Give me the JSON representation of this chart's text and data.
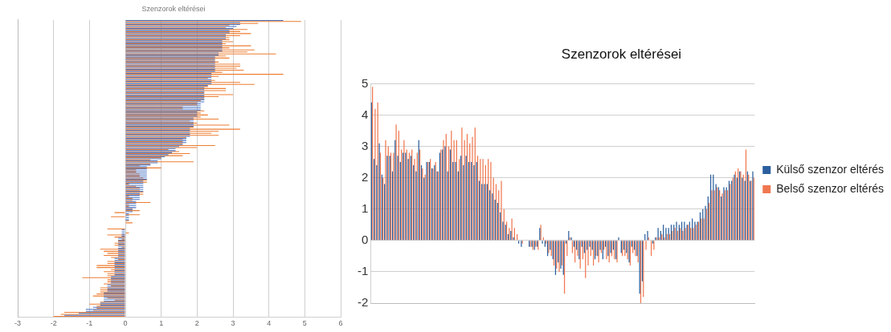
{
  "chart_data": [
    {
      "type": "bar",
      "title": "Szenzorok eltérései",
      "orientation": "horizontal",
      "categories": [
        null,
        null,
        null,
        null,
        null,
        null,
        null,
        null,
        null,
        null,
        null,
        null,
        null,
        null,
        null,
        null,
        null,
        null,
        null,
        null,
        null,
        null,
        null,
        null,
        null,
        null,
        null,
        null,
        null,
        null,
        null,
        null,
        null,
        null,
        null,
        null,
        null,
        null,
        null,
        null,
        null,
        null,
        null,
        null,
        null,
        null,
        null,
        null,
        null,
        null,
        null,
        null,
        null,
        null,
        null,
        null,
        null,
        null,
        null,
        null,
        null,
        null,
        null,
        null,
        null,
        null,
        null,
        null,
        null,
        null,
        null,
        null,
        null,
        null,
        null,
        null,
        null,
        null,
        null,
        null,
        null,
        null,
        null,
        null,
        null,
        null,
        null,
        null,
        null,
        null,
        null,
        null,
        null,
        null,
        null,
        null,
        null,
        null,
        null,
        null,
        null,
        null,
        null,
        null,
        null,
        null,
        null,
        null,
        null,
        null,
        null,
        null,
        null,
        null,
        null,
        null,
        null,
        null,
        null,
        null,
        null,
        null,
        null,
        null,
        null,
        null,
        null,
        null,
        null,
        null,
        null,
        null,
        null,
        null,
        null,
        null,
        null,
        null,
        null,
        null,
        null,
        null,
        null,
        null,
        null,
        null
      ],
      "series": [
        {
          "color": "#4472c4",
          "values": [
            4.4,
            3.2,
            3.2,
            3.1,
            3.0,
            2.9,
            2.9,
            2.8,
            2.8,
            2.8,
            2.7,
            2.7,
            2.7,
            2.7,
            2.7,
            2.7,
            2.6,
            2.6,
            2.5,
            2.5,
            2.5,
            2.5,
            2.5,
            2.5,
            2.5,
            2.5,
            2.4,
            2.4,
            2.4,
            2.4,
            2.4,
            2.4,
            2.3,
            2.2,
            2.2,
            2.2,
            2.2,
            2.2,
            2.2,
            2.2,
            2.2,
            2.1,
            2.1,
            2.1,
            2.1,
            2.0,
            2.0,
            2.0,
            1.9,
            1.9,
            1.9,
            1.9,
            1.9,
            1.8,
            1.8,
            1.8,
            1.8,
            1.8,
            1.7,
            1.7,
            1.7,
            1.6,
            1.5,
            1.4,
            1.4,
            1.3,
            1.2,
            1.1,
            1.0,
            0.9,
            0.9,
            0.7,
            0.6,
            0.6,
            0.6,
            0.6,
            0.6,
            0.6,
            0.6,
            0.5,
            0.5,
            0.5,
            0.5,
            0.5,
            0.5,
            0.4,
            0.4,
            0.4,
            0.4,
            0.3,
            0.3,
            0.3,
            0.3,
            0.2,
            0.2,
            0.1,
            0.1,
            0.1,
            0.1,
            0,
            0,
            0,
            0,
            -0.1,
            -0.1,
            -0.1,
            -0.1,
            -0.2,
            -0.2,
            -0.2,
            -0.2,
            -0.2,
            -0.2,
            -0.2,
            -0.2,
            -0.2,
            -0.2,
            -0.3,
            -0.3,
            -0.3,
            -0.3,
            -0.3,
            -0.3,
            -0.3,
            -0.3,
            -0.3,
            -0.4,
            -0.4,
            -0.4,
            -0.4,
            -0.5,
            -0.5,
            -0.5,
            -0.5,
            -0.6,
            -0.6,
            -0.6,
            -0.6,
            -0.6,
            -0.7,
            -0.7,
            -0.9,
            -1.1,
            -1.1,
            -1.3,
            -1.7
          ]
        },
        {
          "color": "#ed7d31",
          "values": [
            4.9,
            3.7,
            2.9,
            2.8,
            3.4,
            3.2,
            3.5,
            3.2,
            2.9,
            2.9,
            3.0,
            2.8,
            3.5,
            2.9,
            3.6,
            3.4,
            4.2,
            2.8,
            2.9,
            2.5,
            2.6,
            3.2,
            3.2,
            3.1,
            3.3,
            2.7,
            4.4,
            2.6,
            2.3,
            2.5,
            3.2,
            3.6,
            2.3,
            2.8,
            2.8,
            2.2,
            3.0,
            2.6,
            2.2,
            2.1,
            2.0,
            2.0,
            1.6,
            1.6,
            2.2,
            2.1,
            2.3,
            2.1,
            2.6,
            1.8,
            2.0,
            2.9,
            1.9,
            3.2,
            2.6,
            2.4,
            2.6,
            1.7,
            1.6,
            1.6,
            1.6,
            2.5,
            2.0,
            1.2,
            1.5,
            1.8,
            1.6,
            1.0,
            0.7,
            1.9,
            0.7,
            0.4,
            1.0,
            0.3,
            0.3,
            0.4,
            0.4,
            0.5,
            0.6,
            0.6,
            0.1,
            0.3,
            0.4,
            0.4,
            0.5,
            0.5,
            0.1,
            0.2,
            0.2,
            0.7,
            0.1,
            0.1,
            0.2,
            0.4,
            -0.3,
            0.4,
            -0.4,
            0,
            0.1,
            0.2,
            0,
            0,
            -0.5,
            0,
            0.1,
            -0.5,
            -0.3,
            -0.1,
            -0.2,
            -0.3,
            -0.3,
            -0.1,
            -0.7,
            -0.6,
            -0.5,
            -0.6,
            -0.4,
            -0.2,
            -0.5,
            -0.5,
            -0.8,
            -0.8,
            -0.4,
            -0.6,
            -0.5,
            -0.5,
            -1.2,
            -0.5,
            -0.5,
            -0.6,
            -0.4,
            -0.7,
            -0.7,
            -0.7,
            -0.8,
            -0.9,
            -0.5,
            -0.3,
            -0.7,
            -1.0,
            -0.8,
            -0.8,
            -0.9,
            -1.7,
            -1.8,
            -2.0
          ]
        }
      ],
      "xlim": [
        -3,
        6
      ],
      "xticks": [
        -3,
        -2,
        -1,
        0,
        1,
        2,
        3,
        4,
        5,
        6
      ],
      "grid": "x"
    },
    {
      "type": "bar",
      "title": "Szenzorok eltérései",
      "categories": [
        null,
        null,
        null,
        null,
        null,
        null,
        null,
        null,
        null,
        null,
        null,
        null,
        null,
        null,
        null,
        null,
        null,
        null,
        null,
        null,
        null,
        null,
        null,
        null,
        null,
        null,
        null,
        null,
        null,
        null,
        null,
        null,
        null,
        null,
        null,
        null,
        null,
        null,
        null,
        null,
        null,
        null,
        null,
        null,
        null,
        null,
        null,
        null,
        null,
        null,
        null,
        null,
        null,
        null,
        null,
        null,
        null,
        null,
        null,
        null,
        null,
        null,
        null,
        null,
        null,
        null,
        null,
        null,
        null,
        null,
        null,
        null,
        null,
        null,
        null,
        null,
        null,
        null,
        null,
        null,
        null,
        null,
        null,
        null,
        null,
        null,
        null,
        null,
        null,
        null,
        null,
        null,
        null,
        null,
        null,
        null,
        null,
        null,
        null,
        null,
        null,
        null,
        null,
        null,
        null,
        null,
        null,
        null,
        null,
        null,
        null,
        null,
        null,
        null,
        null,
        null,
        null,
        null,
        null,
        null,
        null,
        null,
        null,
        null,
        null,
        null,
        null,
        null,
        null,
        null,
        null,
        null,
        null,
        null,
        null,
        null,
        null,
        null,
        null,
        null,
        null,
        null,
        null,
        null,
        null,
        null
      ],
      "series": [
        {
          "name": "Külső szenzor eltérés",
          "color": "#2b5f9e",
          "values": [
            4.4,
            2.6,
            2.4,
            3.1,
            2.1,
            1.8,
            2.7,
            2.7,
            2.2,
            3.2,
            2.7,
            2.5,
            2.8,
            2.8,
            2.6,
            2.7,
            2.4,
            2.2,
            3.2,
            2.4,
            2.0,
            2.5,
            2.5,
            2.3,
            2.4,
            2.2,
            2.8,
            2.9,
            3.0,
            2.2,
            2.9,
            2.5,
            2.5,
            2.2,
            2.7,
            2.4,
            2.7,
            2.5,
            2.5,
            2.4,
            2.5,
            1.9,
            1.8,
            1.8,
            1.8,
            1.6,
            1.5,
            1.3,
            1.2,
            0.9,
            0.6,
            0.5,
            0.2,
            0.3,
            0.1,
            0,
            -0.1,
            -0.2,
            0,
            0,
            -0.2,
            -0.2,
            -0.3,
            -0.2,
            0.4,
            -0.1,
            -0.2,
            -0.5,
            -0.3,
            -0.6,
            -1.1,
            -0.7,
            -0.9,
            -1.1,
            -0.1,
            0.3,
            0.1,
            -0.2,
            -0.3,
            -0.6,
            -0.2,
            -0.4,
            -0.3,
            -0.2,
            -0.3,
            -0.6,
            -0.5,
            -0.3,
            -0.6,
            -0.2,
            -0.5,
            -0.4,
            -0.3,
            -0.6,
            0.1,
            -0.4,
            -0.3,
            -0.4,
            -0.7,
            -0.2,
            -0.3,
            -0.5,
            -1.7,
            -1.3,
            0.2,
            0.3,
            0,
            -0.1,
            0.1,
            0.4,
            0.3,
            0.5,
            0.4,
            0.4,
            0.5,
            0.5,
            0.6,
            0.5,
            0.6,
            0.6,
            0.5,
            0.6,
            0.7,
            0.6,
            0.6,
            0.9,
            1.0,
            1.1,
            1.4,
            2.1,
            2.1,
            1.8,
            1.7,
            1.4,
            1.7,
            1.7,
            1.9,
            1.9,
            2.1,
            2.0,
            2.2,
            2.0,
            1.9,
            2.2,
            1.9,
            2.2
          ]
        },
        {
          "name": "Belső szenzor eltérés",
          "color": "#f07850",
          "values": [
            4.9,
            4.2,
            4.4,
            2.8,
            2.0,
            3.2,
            3.0,
            2.8,
            2.8,
            3.7,
            3.5,
            2.9,
            3.2,
            2.9,
            2.8,
            2.9,
            2.6,
            2.8,
            2.9,
            2.3,
            2.1,
            2.5,
            2.6,
            2.3,
            2.5,
            2.2,
            2.9,
            3.2,
            3.4,
            3.0,
            3.5,
            3.2,
            3.2,
            2.6,
            3.6,
            3.2,
            3.4,
            3.1,
            3.3,
            3.6,
            2.7,
            2.6,
            2.6,
            2.4,
            2.6,
            2.5,
            2.0,
            1.8,
            1.6,
            1.9,
            1.0,
            0.6,
            0.4,
            0.7,
            0.4,
            0.2,
            0,
            -0.1,
            0,
            0,
            -0.2,
            -0.3,
            -0.2,
            -0.3,
            0.5,
            0.1,
            -0.1,
            -0.4,
            -0.5,
            -0.8,
            -0.9,
            -1.0,
            -0.8,
            -1.7,
            -0.5,
            0.1,
            -0.4,
            -0.7,
            -0.5,
            -0.9,
            -0.6,
            -1.2,
            -0.8,
            -0.5,
            -0.8,
            -0.5,
            -0.7,
            -0.4,
            -0.3,
            -0.6,
            -0.7,
            -0.5,
            -0.6,
            -0.7,
            0,
            -0.5,
            -0.5,
            -0.6,
            -0.8,
            -0.4,
            -0.5,
            -0.7,
            -2.0,
            -1.8,
            -0.3,
            0.1,
            -0.5,
            -0.3,
            0.1,
            0.1,
            0.2,
            0.1,
            0.2,
            0.2,
            0.3,
            0.4,
            0.3,
            0.4,
            0.3,
            0.4,
            0.5,
            0.4,
            0.4,
            0.5,
            0.6,
            0.7,
            0.7,
            1.0,
            1.2,
            1.6,
            1.6,
            1.7,
            1.6,
            1.5,
            1.6,
            1.6,
            1.8,
            2.0,
            2.2,
            2.3,
            2.2,
            2.1,
            2.9,
            2.1,
            1.9,
            2.0
          ]
        }
      ],
      "ylim": [
        -2,
        5
      ],
      "yticks": [
        -2,
        -1,
        0,
        1,
        2,
        3,
        4,
        5
      ],
      "grid": "y",
      "legend": "right"
    }
  ]
}
